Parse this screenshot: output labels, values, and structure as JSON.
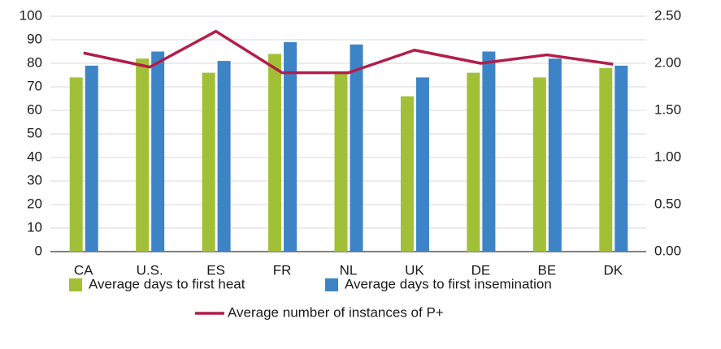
{
  "chart_data": {
    "type": "bar",
    "categories": [
      "CA",
      "U.S.",
      "ES",
      "FR",
      "NL",
      "UK",
      "DE",
      "BE",
      "DK"
    ],
    "series": [
      {
        "name": "Average days to first heat",
        "color": "#a2c037",
        "values": [
          74,
          82,
          76,
          84,
          76,
          66,
          76,
          74,
          78
        ]
      },
      {
        "name": "Average days to first insemination",
        "color": "#3d84c6",
        "values": [
          79,
          85,
          81,
          89,
          88,
          74,
          85,
          82,
          79
        ]
      },
      {
        "name": "Average number of instances of P+",
        "color": "#b31d4a",
        "type": "line",
        "axis": "y2",
        "values": [
          2.11,
          1.96,
          2.34,
          1.9,
          1.9,
          2.14,
          2.0,
          2.09,
          1.99
        ]
      }
    ],
    "ylim": [
      0,
      100
    ],
    "yticks": [
      0,
      10,
      20,
      30,
      40,
      50,
      60,
      70,
      80,
      90,
      100
    ],
    "y2lim": [
      0,
      2.5
    ],
    "y2ticks": [
      {
        "value": 0,
        "label": "0.00"
      },
      {
        "value": 0.5,
        "label": "0.50"
      },
      {
        "value": 1,
        "label": "1.00"
      },
      {
        "value": 1.5,
        "label": "1.50"
      },
      {
        "value": 2,
        "label": "2.00"
      },
      {
        "value": 2.5,
        "label": "2.50"
      }
    ],
    "grid": true,
    "legend": "bottom"
  }
}
